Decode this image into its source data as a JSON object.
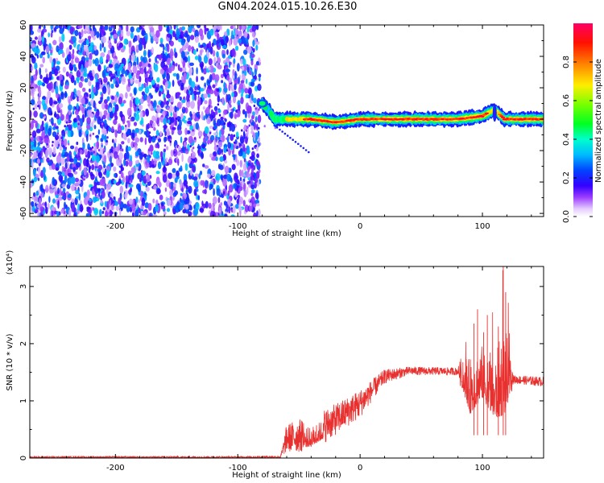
{
  "title": "GN04.2024.015.10.26.E30",
  "chart_data": [
    {
      "type": "heatmap",
      "xlabel": "Height of straight line (km)",
      "ylabel": "Frequency (Hz)",
      "xlim": [
        -270,
        150
      ],
      "ylim": [
        -62,
        60
      ],
      "xticks": [
        -200,
        -100,
        0,
        100
      ],
      "yticks": [
        -60,
        -40,
        -20,
        0,
        20,
        40,
        60
      ],
      "noise_region": {
        "x": [
          -270,
          -82
        ],
        "y": [
          -62,
          60
        ],
        "amplitude": [
          0.05,
          0.35
        ]
      },
      "signal_band": [
        {
          "x": -80,
          "y": 10,
          "amp": 0.45
        },
        {
          "x": -75,
          "y": 6,
          "amp": 0.35
        },
        {
          "x": -70,
          "y": 0,
          "amp": 0.5
        },
        {
          "x": -40,
          "y": 0,
          "amp": 0.8
        },
        {
          "x": -20,
          "y": -2,
          "amp": 0.85
        },
        {
          "x": 0,
          "y": 0,
          "amp": 0.95
        },
        {
          "x": 40,
          "y": 0,
          "amp": 0.9
        },
        {
          "x": 80,
          "y": 0,
          "amp": 0.8
        },
        {
          "x": 100,
          "y": 2,
          "amp": 0.85
        },
        {
          "x": 110,
          "y": 6,
          "amp": 0.6
        },
        {
          "x": 118,
          "y": 0,
          "amp": 0.9
        },
        {
          "x": 150,
          "y": 0,
          "amp": 0.85
        }
      ],
      "colorbar": {
        "label": "Normalized spectral amplitude",
        "range": [
          0.0,
          1.0
        ],
        "ticks": [
          "0.0",
          "0.2",
          "0.4",
          "0.6",
          "0.8"
        ]
      }
    },
    {
      "type": "line",
      "xlabel": "Height of straight line (km)",
      "ylabel": "SNR (10 * v/v)",
      "scale_label": "(x10⁴)",
      "xlim": [
        -270,
        150
      ],
      "ylim": [
        0,
        3.35
      ],
      "xticks": [
        -200,
        -100,
        0,
        100
      ],
      "yticks": [
        0,
        1,
        2,
        3
      ],
      "color": "#e8302e",
      "envelope": [
        {
          "x": -270,
          "low": 0.0,
          "high": 0.03
        },
        {
          "x": -100,
          "low": 0.0,
          "high": 0.03
        },
        {
          "x": -65,
          "low": 0.0,
          "high": 0.04
        },
        {
          "x": -60,
          "low": 0.1,
          "high": 0.6
        },
        {
          "x": -40,
          "low": 0.1,
          "high": 0.75
        },
        {
          "x": -20,
          "low": 0.4,
          "high": 0.95
        },
        {
          "x": 0,
          "low": 0.7,
          "high": 1.2
        },
        {
          "x": 20,
          "low": 1.3,
          "high": 1.55
        },
        {
          "x": 40,
          "low": 1.45,
          "high": 1.6
        },
        {
          "x": 80,
          "low": 1.45,
          "high": 1.58
        },
        {
          "x": 90,
          "low": 0.5,
          "high": 2.3
        },
        {
          "x": 100,
          "low": 0.8,
          "high": 2.5
        },
        {
          "x": 110,
          "low": 0.4,
          "high": 2.3
        },
        {
          "x": 118,
          "low": 0.3,
          "high": 3.35
        },
        {
          "x": 125,
          "low": 1.3,
          "high": 1.45
        },
        {
          "x": 150,
          "low": 1.25,
          "high": 1.42
        }
      ]
    }
  ]
}
